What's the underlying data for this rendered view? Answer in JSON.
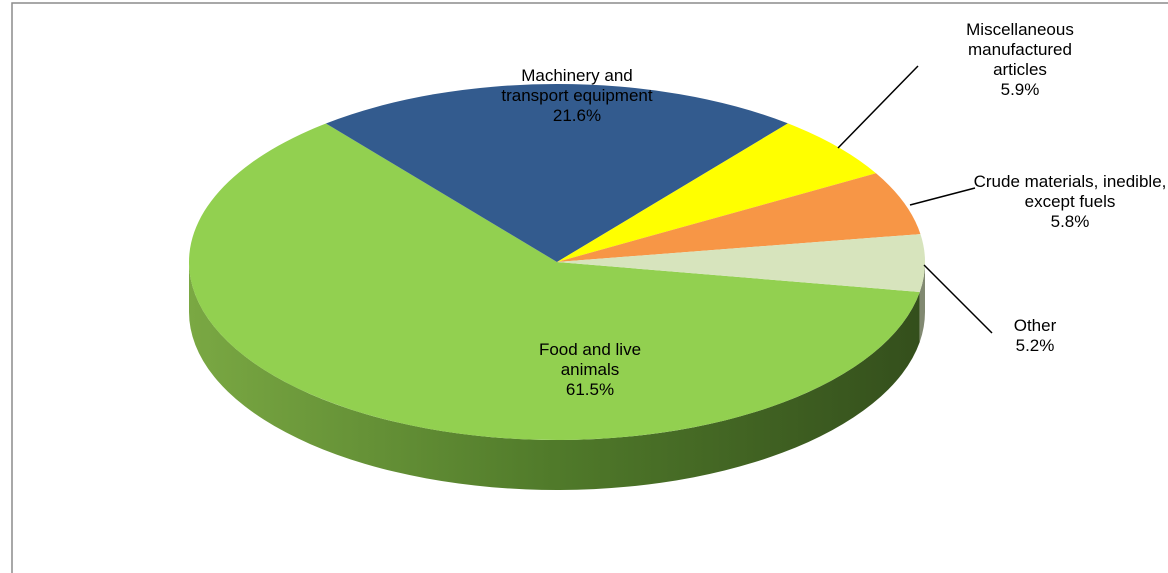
{
  "chart_data": {
    "type": "pie",
    "categories": [
      "Food and live animals",
      "Machinery and transport equipment",
      "Miscellaneous manufactured articles",
      "Crude materials, inedible, except fuels",
      "Other"
    ],
    "values": [
      61.5,
      21.6,
      5.9,
      5.8,
      5.2
    ],
    "value_labels": [
      "61.5%",
      "21.6%",
      "5.9%",
      "5.8%",
      "5.2%"
    ],
    "colors": [
      "#92d050",
      "#335b8e",
      "#ffff00",
      "#f79646",
      "#d7e4bd"
    ]
  }
}
